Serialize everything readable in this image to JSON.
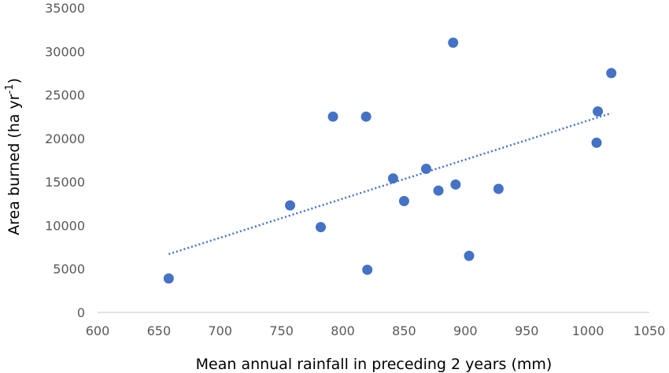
{
  "chart_data": {
    "type": "scatter",
    "xlabel": "Mean annual rainfall in preceding 2 years (mm)",
    "ylabel": "Area burned (ha yr",
    "ylabel_sup": "-1",
    "ylabel_end": ")",
    "xlim": [
      600,
      1050
    ],
    "ylim": [
      0,
      35000
    ],
    "x_ticks": [
      600,
      650,
      700,
      750,
      800,
      850,
      900,
      950,
      1000,
      1050
    ],
    "y_ticks": [
      0,
      5000,
      10000,
      15000,
      20000,
      25000,
      30000,
      35000
    ],
    "grid": "none",
    "legend": "none",
    "points": [
      {
        "x": 658,
        "y": 3900
      },
      {
        "x": 757,
        "y": 12300
      },
      {
        "x": 782,
        "y": 9800
      },
      {
        "x": 792,
        "y": 22500
      },
      {
        "x": 819,
        "y": 22500
      },
      {
        "x": 820,
        "y": 4900
      },
      {
        "x": 841,
        "y": 15400
      },
      {
        "x": 850,
        "y": 12800
      },
      {
        "x": 868,
        "y": 16500
      },
      {
        "x": 878,
        "y": 14000
      },
      {
        "x": 890,
        "y": 31000
      },
      {
        "x": 892,
        "y": 14700
      },
      {
        "x": 903,
        "y": 6500
      },
      {
        "x": 927,
        "y": 14200
      },
      {
        "x": 1007,
        "y": 19500
      },
      {
        "x": 1008,
        "y": 23100
      },
      {
        "x": 1019,
        "y": 27500
      }
    ],
    "trendline": {
      "type": "linear",
      "style": "dotted",
      "x_start": 658,
      "y_start": 6700,
      "x_end": 1019,
      "y_end": 22900
    },
    "colors": {
      "marker": "#4472c4",
      "trendline": "#4472c4",
      "axis": "#d9d9d9",
      "tick_text": "#595959"
    }
  }
}
